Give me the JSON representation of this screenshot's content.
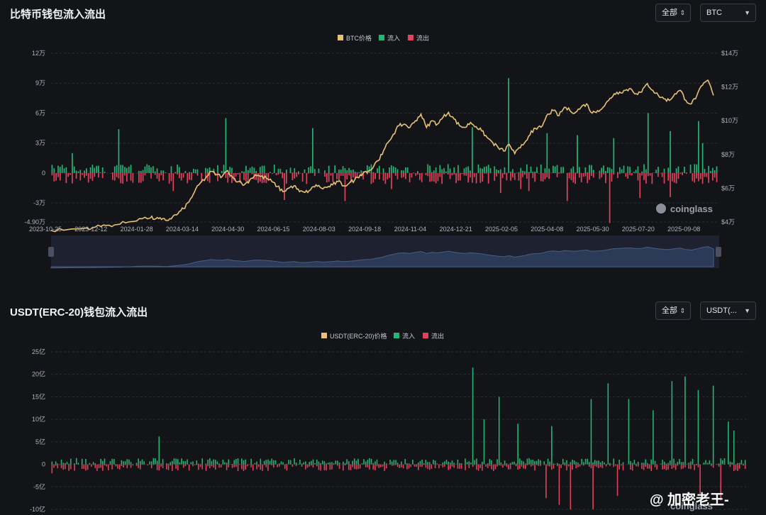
{
  "btc_panel": {
    "title": "比特币钱包流入流出",
    "filter_label": "全部",
    "asset_label": "BTC",
    "watermark": "coinglass"
  },
  "usdt_panel": {
    "title": "USDT(ERC-20)钱包流入流出",
    "filter_label": "全部",
    "asset_label": "USDT(...",
    "watermark": "coinglass"
  },
  "overlay_watermark": "@ 加密老王-",
  "colors": {
    "price": "#e8c272",
    "inflow": "#22b573",
    "outflow": "#e0435c",
    "navigator": "#2b3a57"
  },
  "chart_data": [
    {
      "type": "bar",
      "legend": [
        "BTC价格",
        "流入",
        "流出"
      ],
      "y_left_ticks": [
        "12万",
        "9万",
        "6万",
        "3万",
        "0",
        "-3万",
        "-4.90万"
      ],
      "y_right_ticks": [
        "$14万",
        "$12万",
        "$10万",
        "$8万",
        "$6万",
        "$4万"
      ],
      "x_ticks": [
        "2023-10-25",
        "2023-12-12",
        "2024-01-28",
        "2024-03-14",
        "2024-04-30",
        "2024-06-15",
        "2024-08-03",
        "2024-09-18",
        "2024-11-04",
        "2024-12-21",
        "2025-02-05",
        "2025-04-08",
        "2025-05-30",
        "2025-07-20",
        "2025-09-08"
      ],
      "ylim_left": [
        -49000,
        120000
      ],
      "ylim_right": [
        40000,
        140000
      ],
      "price_series": [
        [
          0,
          35000
        ],
        [
          3,
          35500
        ],
        [
          6,
          36200
        ],
        [
          8,
          37000
        ],
        [
          10,
          38000
        ],
        [
          12,
          38500
        ],
        [
          14,
          40000
        ],
        [
          16,
          42000
        ],
        [
          18,
          42500
        ],
        [
          19,
          42000
        ],
        [
          20,
          41500
        ],
        [
          21,
          41000
        ],
        [
          22,
          43000
        ],
        [
          23,
          45000
        ],
        [
          24,
          48000
        ],
        [
          25,
          52000
        ],
        [
          26,
          58000
        ],
        [
          27,
          63000
        ],
        [
          28,
          66000
        ],
        [
          29,
          70000
        ],
        [
          30,
          68000
        ],
        [
          31,
          67000
        ],
        [
          32,
          70500
        ],
        [
          33,
          66000
        ],
        [
          34,
          64000
        ],
        [
          35,
          62000
        ],
        [
          36,
          65000
        ],
        [
          37,
          68000
        ],
        [
          38,
          67000
        ],
        [
          39,
          66000
        ],
        [
          40,
          64000
        ],
        [
          41,
          61000
        ],
        [
          42,
          58000
        ],
        [
          43,
          60000
        ],
        [
          44,
          61500
        ],
        [
          45,
          58000
        ],
        [
          46,
          57500
        ],
        [
          47,
          59000
        ],
        [
          48,
          62000
        ],
        [
          49,
          60000
        ],
        [
          50,
          60500
        ],
        [
          51,
          62000
        ],
        [
          52,
          64000
        ],
        [
          53,
          61500
        ],
        [
          54,
          63000
        ],
        [
          55,
          65000
        ],
        [
          56,
          68000
        ],
        [
          57,
          70000
        ],
        [
          58,
          71000
        ],
        [
          59,
          76000
        ],
        [
          60,
          80000
        ],
        [
          61,
          87000
        ],
        [
          62,
          92000
        ],
        [
          63,
          97000
        ],
        [
          64,
          98000
        ],
        [
          65,
          96000
        ],
        [
          66,
          100000
        ],
        [
          67,
          104000
        ],
        [
          68,
          96000
        ],
        [
          69,
          100000
        ],
        [
          70,
          98000
        ],
        [
          71,
          102000
        ],
        [
          72,
          105000
        ],
        [
          73,
          101000
        ],
        [
          74,
          97000
        ],
        [
          75,
          96000
        ],
        [
          76,
          99000
        ],
        [
          77,
          96500
        ],
        [
          78,
          94000
        ],
        [
          79,
          90000
        ],
        [
          80,
          87000
        ],
        [
          81,
          84000
        ],
        [
          82,
          82000
        ],
        [
          83,
          86000
        ],
        [
          84,
          80500
        ],
        [
          85,
          84000
        ],
        [
          86,
          88000
        ],
        [
          87,
          94000
        ],
        [
          88,
          95000
        ],
        [
          89,
          97000
        ],
        [
          90,
          104000
        ],
        [
          91,
          106000
        ],
        [
          92,
          103000
        ],
        [
          93,
          108000
        ],
        [
          94,
          106000
        ],
        [
          95,
          105000
        ],
        [
          96,
          108000
        ],
        [
          97,
          110000
        ],
        [
          98,
          104500
        ],
        [
          99,
          106000
        ],
        [
          100,
          108000
        ],
        [
          101,
          112000
        ],
        [
          102,
          116000
        ],
        [
          103,
          117000
        ],
        [
          104,
          118000
        ],
        [
          105,
          119000
        ],
        [
          106,
          116000
        ],
        [
          107,
          117000
        ],
        [
          108,
          122000
        ],
        [
          109,
          118000
        ],
        [
          110,
          115000
        ],
        [
          111,
          113000
        ],
        [
          112,
          112000
        ],
        [
          113,
          116000
        ],
        [
          114,
          118000
        ],
        [
          115,
          112000
        ],
        [
          116,
          110000
        ],
        [
          117,
          115000
        ],
        [
          118,
          121000
        ],
        [
          119,
          124000
        ],
        [
          120,
          115000
        ]
      ],
      "inflow_peaks": [
        [
          10,
          20000
        ],
        [
          33,
          44000
        ],
        [
          86,
          55000
        ],
        [
          129,
          45000
        ],
        [
          208,
          46000
        ],
        [
          226,
          95000
        ],
        [
          245,
          40000
        ],
        [
          260,
          38000
        ],
        [
          278,
          35000
        ],
        [
          295,
          60000
        ],
        [
          306,
          42000
        ],
        [
          320,
          52000
        ],
        [
          322,
          30000
        ]
      ],
      "outflow_peaks": [
        [
          60,
          -18000
        ],
        [
          115,
          -27000
        ],
        [
          145,
          -28000
        ],
        [
          168,
          -16000
        ],
        [
          222,
          -20000
        ],
        [
          232,
          -16000
        ],
        [
          236,
          -18000
        ],
        [
          255,
          -28000
        ],
        [
          276,
          -50000
        ],
        [
          291,
          -25000
        ],
        [
          306,
          -24000
        ]
      ]
    },
    {
      "type": "bar",
      "legend": [
        "USDT(ERC-20)价格",
        "流入",
        "流出"
      ],
      "y_left_ticks": [
        "25亿",
        "20亿",
        "15亿",
        "10亿",
        "5亿",
        "0",
        "-5亿",
        "-10亿"
      ],
      "x_ticks": [],
      "ylim_left": [
        -1000000000,
        2500000000
      ],
      "inflow_peaks": [
        [
          57,
          620000000
        ],
        [
          224,
          2150000000
        ],
        [
          230,
          1000000000
        ],
        [
          238,
          1500000000
        ],
        [
          248,
          900000000
        ],
        [
          266,
          850000000
        ],
        [
          287,
          1450000000
        ],
        [
          296,
          1800000000
        ],
        [
          307,
          1450000000
        ],
        [
          320,
          1200000000
        ],
        [
          330,
          1850000000
        ],
        [
          337,
          1950000000
        ],
        [
          344,
          1650000000
        ],
        [
          352,
          1750000000
        ],
        [
          360,
          950000000
        ],
        [
          363,
          750000000
        ]
      ],
      "outflow_peaks": [
        [
          0,
          -200000000
        ],
        [
          99,
          -150000000
        ],
        [
          263,
          -750000000
        ],
        [
          270,
          -900000000
        ],
        [
          276,
          -1000000000
        ],
        [
          288,
          -1000000000
        ],
        [
          301,
          -700000000
        ],
        [
          345,
          -650000000
        ],
        [
          356,
          -800000000
        ]
      ]
    }
  ]
}
